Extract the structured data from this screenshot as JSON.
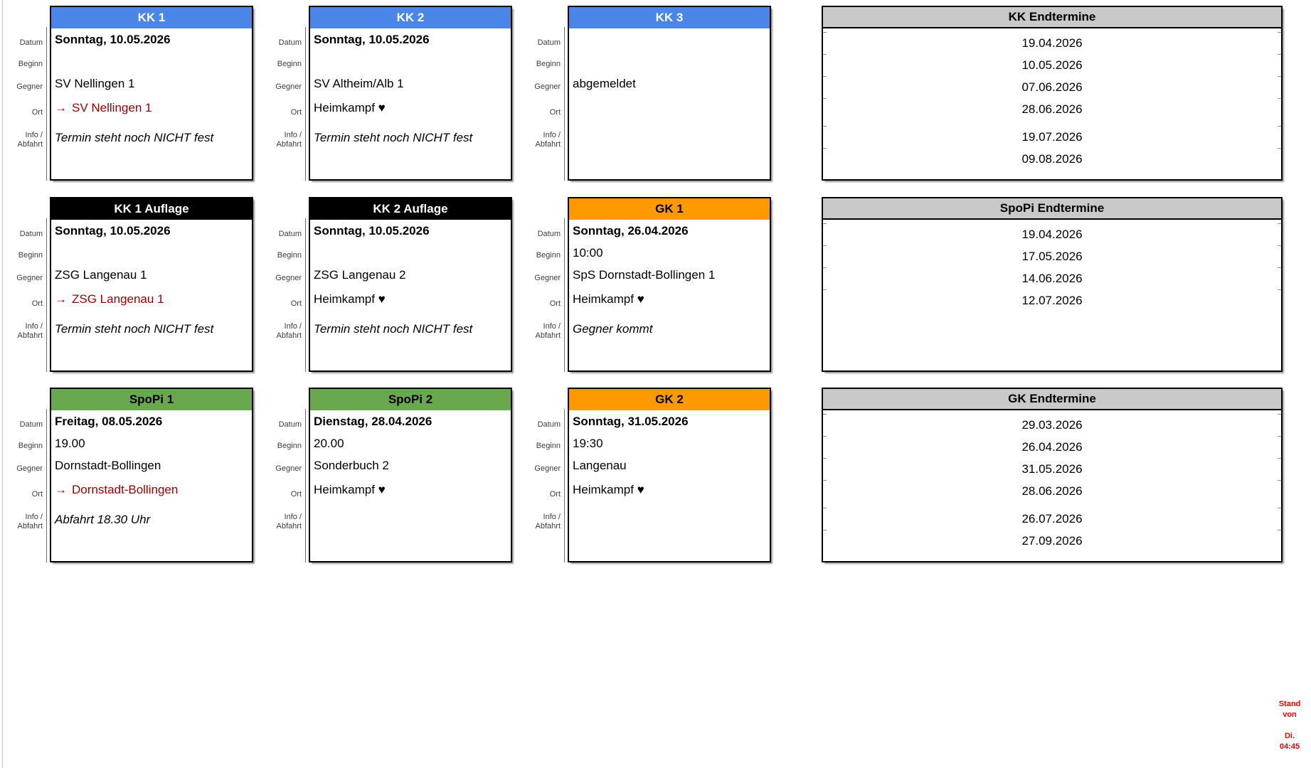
{
  "colors": {
    "kk_blue": "#4A86E8",
    "auflage_black": "#000000",
    "gk_orange": "#FF9900",
    "spopi_green": "#6AA84F",
    "panel_gray": "#C9C9C9",
    "away_red": "#990000",
    "stand_red": "#FF0000"
  },
  "labels": {
    "datum": "Datum",
    "beginn": "Beginn",
    "gegner": "Gegner",
    "ort": "Ort",
    "info1": "Info /",
    "info2": "Abfahrt"
  },
  "away_arrow": "→",
  "cards": [
    {
      "title": "KK 1",
      "header_bg": "#4A86E8",
      "header_fg": "#FFFFFF",
      "datum": "Sonntag, 10.05.2026",
      "beginn": "",
      "gegner": "SV Nellingen 1",
      "ort": {
        "away": true,
        "label": "SV Nellingen 1"
      },
      "info": "Termin steht noch NICHT fest"
    },
    {
      "title": "KK 2",
      "header_bg": "#4A86E8",
      "header_fg": "#FFFFFF",
      "datum": "Sonntag, 10.05.2026",
      "beginn": "",
      "gegner": "SV Altheim/Alb 1",
      "ort": {
        "away": false,
        "label": "Heimkampf ♥"
      },
      "info": "Termin steht noch NICHT fest"
    },
    {
      "title": "KK 3",
      "header_bg": "#4A86E8",
      "header_fg": "#FFFFFF",
      "datum": "",
      "beginn": "",
      "gegner": "abgemeldet",
      "ort": {
        "away": false,
        "label": ""
      },
      "info": ""
    },
    {
      "title": "KK 1 Auflage",
      "header_bg": "#000000",
      "header_fg": "#FFFFFF",
      "datum": "Sonntag, 10.05.2026",
      "beginn": "",
      "gegner": "ZSG Langenau 1",
      "ort": {
        "away": true,
        "label": "ZSG Langenau 1"
      },
      "info": "Termin steht noch NICHT fest"
    },
    {
      "title": "KK 2 Auflage",
      "header_bg": "#000000",
      "header_fg": "#FFFFFF",
      "datum": "Sonntag, 10.05.2026",
      "beginn": "",
      "gegner": "ZSG Langenau 2",
      "ort": {
        "away": false,
        "label": "Heimkampf ♥"
      },
      "info": "Termin steht noch NICHT fest"
    },
    {
      "title": "GK 1",
      "header_bg": "#FF9900",
      "header_fg": "#000000",
      "datum": "Sonntag, 26.04.2026",
      "beginn": "10:00",
      "gegner": "SpS Dornstadt-Bollingen 1",
      "ort": {
        "away": false,
        "label": "Heimkampf ♥"
      },
      "info": "Gegner kommt"
    },
    {
      "title": "SpoPi 1",
      "header_bg": "#6AA84F",
      "header_fg": "#000000",
      "datum": "Freitag, 08.05.2026",
      "beginn": "19.00",
      "gegner": "Dornstadt-Bollingen",
      "ort": {
        "away": true,
        "label": "Dornstadt-Bollingen"
      },
      "info": "Abfahrt 18.30 Uhr"
    },
    {
      "title": "SpoPi 2",
      "header_bg": "#6AA84F",
      "header_fg": "#000000",
      "datum": "Dienstag, 28.04.2026",
      "beginn": "20.00",
      "gegner": "Sonderbuch 2",
      "ort": {
        "away": false,
        "label": "Heimkampf ♥"
      },
      "info": ""
    },
    {
      "title": "GK 2",
      "header_bg": "#FF9900",
      "header_fg": "#000000",
      "datum": "Sonntag, 31.05.2026",
      "beginn": "19:30",
      "gegner": "Langenau",
      "ort": {
        "away": false,
        "label": "Heimkampf ♥"
      },
      "info": ""
    }
  ],
  "panels": [
    {
      "title": "KK Endtermine",
      "groups": [
        [
          "19.04.2026",
          "10.05.2026",
          "07.06.2026",
          "28.06.2026"
        ],
        [
          "19.07.2026",
          "09.08.2026"
        ]
      ]
    },
    {
      "title": "SpoPi Endtermine",
      "groups": [
        [
          "19.04.2026",
          "17.05.2026",
          "14.06.2026",
          "12.07.2026"
        ]
      ]
    },
    {
      "title": "GK Endtermine",
      "groups": [
        [
          "29.03.2026",
          "26.04.2026",
          "31.05.2026",
          "28.06.2026"
        ],
        [
          "26.07.2026",
          "27.09.2026"
        ]
      ]
    }
  ],
  "stand": {
    "lines": [
      "Stand",
      "von",
      "",
      "Di.",
      "04:45"
    ]
  }
}
